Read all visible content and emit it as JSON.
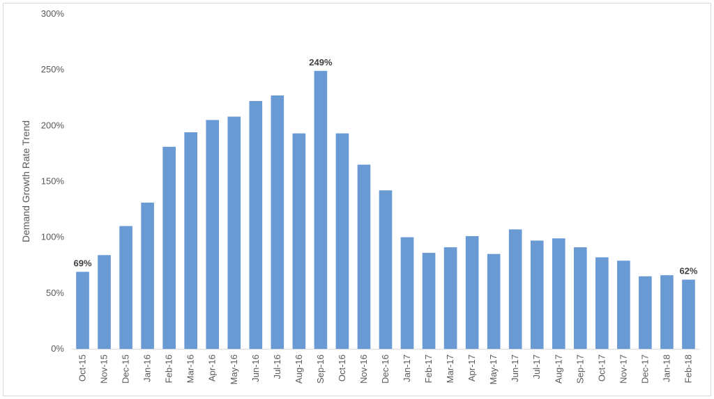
{
  "chart_data": {
    "type": "bar",
    "title": "",
    "xlabel": "",
    "ylabel": "Demand Growth Rate Trend",
    "ylim": [
      0,
      300
    ],
    "yticks": [
      0,
      50,
      100,
      150,
      200,
      250,
      300
    ],
    "ytick_labels": [
      "0%",
      "50%",
      "100%",
      "150%",
      "200%",
      "250%",
      "300%"
    ],
    "grid": false,
    "legend": "none",
    "bar_color": "#6a9ad4",
    "categories": [
      "Oct-15",
      "Nov-15",
      "Dec-15",
      "Jan-16",
      "Feb-16",
      "Mar-16",
      "Apr-16",
      "May-16",
      "Jun-16",
      "Jul-16",
      "Aug-16",
      "Sep-16",
      "Oct-16",
      "Nov-16",
      "Dec-16",
      "Jan-17",
      "Feb-17",
      "Mar-17",
      "Apr-17",
      "May-17",
      "Jun-17",
      "Jul-17",
      "Aug-17",
      "Sep-17",
      "Oct-17",
      "Nov-17",
      "Dec-17",
      "Jan-18",
      "Feb-18"
    ],
    "values": [
      69,
      84,
      110,
      131,
      181,
      194,
      205,
      208,
      222,
      227,
      193,
      249,
      193,
      165,
      142,
      100,
      86,
      91,
      101,
      85,
      107,
      97,
      99,
      91,
      82,
      79,
      65,
      66,
      62
    ],
    "data_labels": [
      {
        "index": 0,
        "text": "69%"
      },
      {
        "index": 11,
        "text": "249%"
      },
      {
        "index": 28,
        "text": "62%"
      }
    ]
  }
}
